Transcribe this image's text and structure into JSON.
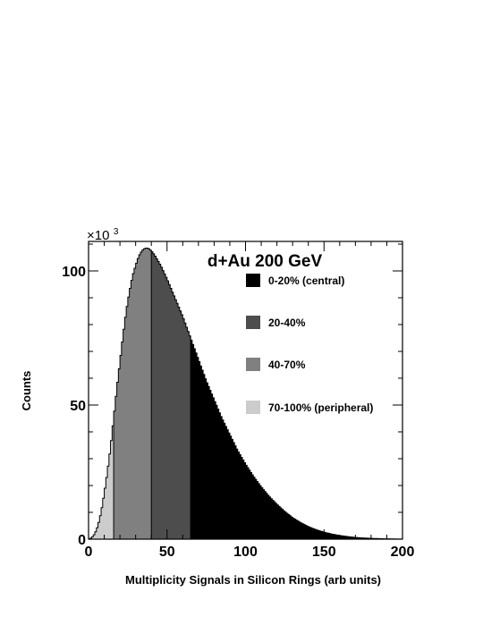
{
  "chart_data": {
    "type": "histogram",
    "title": "d+Au 200 GeV",
    "xlabel": "Multiplicity Signals in Silicon Rings (arb units)",
    "ylabel": "Counts",
    "y_multiplier": "×10",
    "y_multiplier_exp": "3",
    "xlim": [
      0,
      200
    ],
    "ylim": [
      0,
      111
    ],
    "xticks": [
      0,
      50,
      100,
      150,
      200
    ],
    "xtick_labels": [
      "0",
      "50",
      "100",
      "150",
      "200"
    ],
    "yticks": [
      0,
      50,
      100
    ],
    "ytick_labels": [
      "0",
      "50",
      "100"
    ],
    "legend_placement": "top-right",
    "curve_points": [
      [
        0,
        0
      ],
      [
        2,
        0.5
      ],
      [
        4,
        2
      ],
      [
        6,
        5
      ],
      [
        8,
        10
      ],
      [
        10,
        17
      ],
      [
        12,
        25
      ],
      [
        14,
        34
      ],
      [
        16,
        45
      ],
      [
        18,
        56
      ],
      [
        20,
        66
      ],
      [
        22,
        76
      ],
      [
        24,
        85
      ],
      [
        26,
        92
      ],
      [
        28,
        98
      ],
      [
        30,
        102
      ],
      [
        32,
        105.5
      ],
      [
        34,
        107.5
      ],
      [
        36,
        108.5
      ],
      [
        38,
        108.5
      ],
      [
        40,
        107.5
      ],
      [
        42,
        106
      ],
      [
        44,
        104
      ],
      [
        46,
        102
      ],
      [
        48,
        99.5
      ],
      [
        50,
        97
      ],
      [
        55,
        90
      ],
      [
        60,
        83
      ],
      [
        65,
        75
      ],
      [
        70,
        67
      ],
      [
        75,
        59
      ],
      [
        80,
        52
      ],
      [
        85,
        45
      ],
      [
        90,
        39
      ],
      [
        95,
        33
      ],
      [
        100,
        28
      ],
      [
        105,
        23.5
      ],
      [
        110,
        19.5
      ],
      [
        115,
        16
      ],
      [
        120,
        13
      ],
      [
        125,
        10.3
      ],
      [
        130,
        8
      ],
      [
        135,
        6.2
      ],
      [
        140,
        4.7
      ],
      [
        145,
        3.5
      ],
      [
        150,
        2.6
      ],
      [
        155,
        1.9
      ],
      [
        160,
        1.35
      ],
      [
        165,
        0.95
      ],
      [
        170,
        0.65
      ],
      [
        175,
        0.45
      ],
      [
        180,
        0.3
      ],
      [
        185,
        0.2
      ],
      [
        190,
        0.12
      ],
      [
        195,
        0.07
      ],
      [
        200,
        0.04
      ]
    ],
    "bin_width": 1,
    "boundaries": [
      16,
      40,
      65
    ],
    "series": [
      {
        "name": "0-20% (central)",
        "range": [
          65,
          200
        ],
        "color": "#000000"
      },
      {
        "name": "20-40%",
        "range": [
          40,
          65
        ],
        "color": "#4d4d4d"
      },
      {
        "name": "40-70%",
        "range": [
          16,
          40
        ],
        "color": "#808080"
      },
      {
        "name": "70-100% (peripheral)",
        "range": [
          0,
          16
        ],
        "color": "#cccccc"
      }
    ]
  }
}
